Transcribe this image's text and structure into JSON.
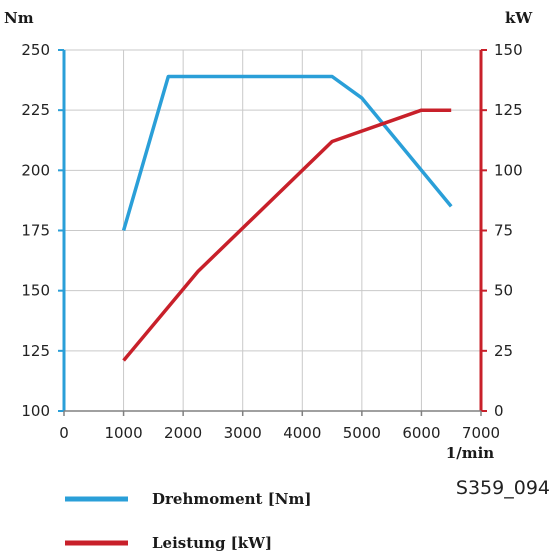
{
  "chart_data": {
    "type": "line",
    "x_unit_label": "1/min",
    "y_left_unit_label": "Nm",
    "y_right_unit_label": "kW",
    "xlim": [
      0,
      7000
    ],
    "x_ticks": [
      0,
      1000,
      2000,
      3000,
      4000,
      5000,
      6000,
      7000
    ],
    "ylim_left": [
      100,
      250
    ],
    "y_left_ticks": [
      100,
      125,
      150,
      175,
      200,
      225,
      250
    ],
    "ylim_right": [
      0,
      150
    ],
    "y_right_ticks": [
      0,
      25,
      50,
      75,
      100,
      125,
      150
    ],
    "grid": true,
    "legend_position": "bottom-left",
    "series": [
      {
        "name": "Drehmoment [Nm]",
        "axis": "left",
        "color": "#2a9fd8",
        "points": [
          [
            1000,
            175
          ],
          [
            1750,
            239
          ],
          [
            4500,
            239
          ],
          [
            5000,
            230
          ],
          [
            6500,
            185
          ]
        ]
      },
      {
        "name": "Leistung [kW]",
        "axis": "right",
        "color": "#c8202a",
        "points": [
          [
            1000,
            21
          ],
          [
            2250,
            58
          ],
          [
            4500,
            112
          ],
          [
            6000,
            125
          ],
          [
            6500,
            125
          ]
        ]
      }
    ]
  },
  "figure_id": "S359_094"
}
